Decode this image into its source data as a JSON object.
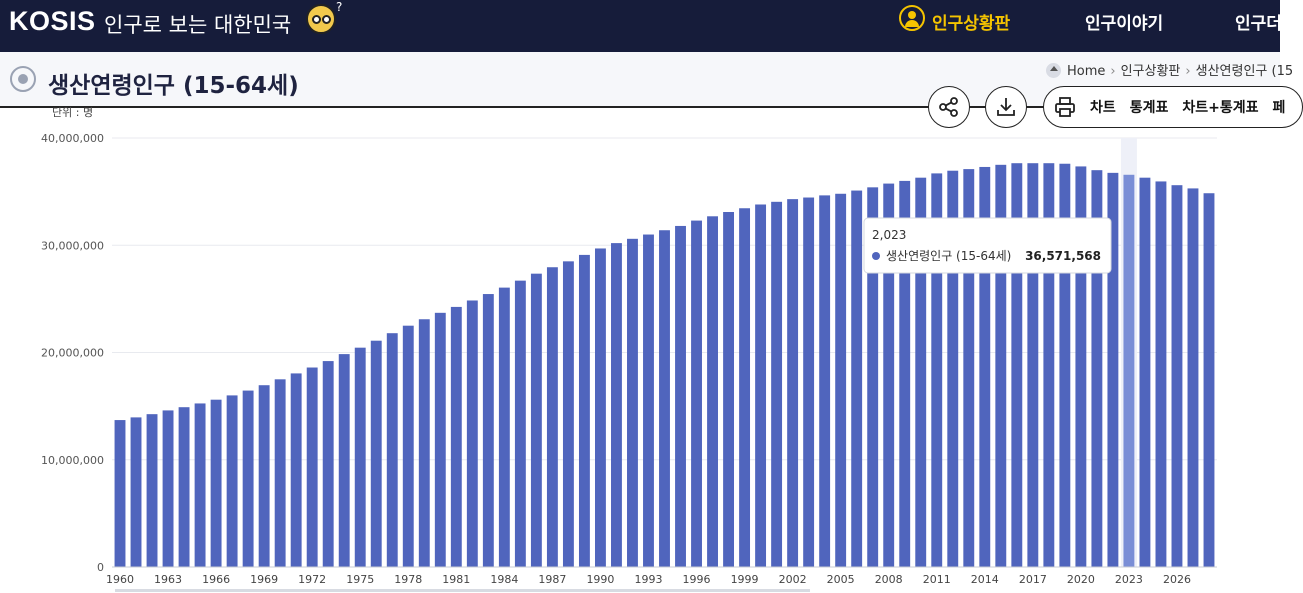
{
  "header": {
    "logo": "KOSIS",
    "tagline": "인구로 보는 대한민국",
    "nav": [
      {
        "label": "인구상황판",
        "active": true
      },
      {
        "label": "인구이야기",
        "active": false
      },
      {
        "label": "인구더",
        "active": false
      }
    ]
  },
  "page": {
    "title": "생산연령인구 (15-64세)",
    "breadcrumb": [
      "Home",
      "인구상황판",
      "생산연령인구 (15"
    ]
  },
  "toolbar": {
    "share_icon": "share-icon",
    "download_icon": "download-icon",
    "print_icon": "print-icon",
    "view_options": [
      "차트",
      "통계표",
      "차트+통계표",
      "페"
    ]
  },
  "colors": {
    "header_bg": "#161c3a",
    "accent": "#f5c400",
    "bar": "#5065bd",
    "bar_highlight": "#7a8ed6"
  },
  "chart_data": {
    "type": "bar",
    "unit_label": "단위 : 명",
    "x": [
      1960,
      1961,
      1962,
      1963,
      1964,
      1965,
      1966,
      1967,
      1968,
      1969,
      1970,
      1971,
      1972,
      1973,
      1974,
      1975,
      1976,
      1977,
      1978,
      1979,
      1980,
      1981,
      1982,
      1983,
      1984,
      1985,
      1986,
      1987,
      1988,
      1989,
      1990,
      1991,
      1992,
      1993,
      1994,
      1995,
      1996,
      1997,
      1998,
      1999,
      2000,
      2001,
      2002,
      2003,
      2004,
      2005,
      2006,
      2007,
      2008,
      2009,
      2010,
      2011,
      2012,
      2013,
      2014,
      2015,
      2016,
      2017,
      2018,
      2019,
      2020,
      2021,
      2022,
      2023,
      2024,
      2025,
      2026,
      2027,
      2028
    ],
    "x_tick_labels": [
      "1960",
      "1963",
      "1966",
      "1969",
      "1972",
      "1975",
      "1978",
      "1981",
      "1984",
      "1987",
      "1990",
      "1993",
      "1996",
      "1999",
      "2002",
      "2005",
      "2008",
      "2011",
      "2014",
      "2017",
      "2020",
      "2023",
      "2026"
    ],
    "series": [
      {
        "name": "생산연령인구 (15-64세)",
        "values": [
          13700000,
          13950000,
          14250000,
          14600000,
          14900000,
          15250000,
          15600000,
          16000000,
          16450000,
          16950000,
          17500000,
          18050000,
          18600000,
          19200000,
          19850000,
          20450000,
          21100000,
          21800000,
          22500000,
          23100000,
          23700000,
          24250000,
          24850000,
          25450000,
          26050000,
          26700000,
          27350000,
          27950000,
          28500000,
          29100000,
          29700000,
          30200000,
          30600000,
          31000000,
          31400000,
          31800000,
          32300000,
          32700000,
          33100000,
          33450000,
          33800000,
          34050000,
          34300000,
          34450000,
          34650000,
          34800000,
          35100000,
          35400000,
          35750000,
          36000000,
          36300000,
          36700000,
          36950000,
          37100000,
          37300000,
          37500000,
          37650000,
          37650000,
          37650000,
          37600000,
          37350000,
          37000000,
          36750000,
          36571568,
          36300000,
          35950000,
          35600000,
          35300000,
          34850000
        ]
      }
    ],
    "ylim": [
      0,
      40000000
    ],
    "y_ticks": [
      0,
      10000000,
      20000000,
      30000000,
      40000000
    ],
    "y_tick_labels": [
      "0",
      "10,000,000",
      "20,000,000",
      "30,000,000",
      "40,000,000"
    ],
    "grid": true,
    "highlight_index": 63,
    "tooltip": {
      "year_label": "2,023",
      "series_name": "생산연령인구 (15-64세)",
      "value_label": "36,571,568"
    }
  }
}
